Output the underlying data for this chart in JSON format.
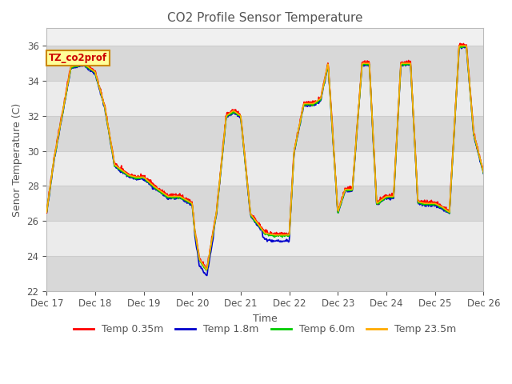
{
  "title": "CO2 Profile Sensor Temperature",
  "ylabel": "Senor Temperature (C)",
  "xlabel": "Time",
  "annotation_text": "TZ_co2prof",
  "annotation_color": "#cc0000",
  "annotation_bg": "#ffff99",
  "annotation_border": "#cc8800",
  "ylim": [
    22,
    37
  ],
  "yticks": [
    22,
    24,
    26,
    28,
    30,
    32,
    34,
    36
  ],
  "legend_labels": [
    "Temp 0.35m",
    "Temp 1.8m",
    "Temp 6.0m",
    "Temp 23.5m"
  ],
  "legend_colors": [
    "#ff0000",
    "#0000cc",
    "#00cc00",
    "#ffaa00"
  ],
  "line_colors": [
    "#ff0000",
    "#0000cc",
    "#00cc00",
    "#ffaa00"
  ],
  "bg_color": "#ffffff",
  "plot_bg_light": "#f0f0f0",
  "plot_bg_dark": "#e0e0e0",
  "grid_color": "#cccccc",
  "x_start": 17,
  "x_end": 26,
  "xtick_positions": [
    17,
    18,
    19,
    20,
    21,
    22,
    23,
    24,
    25,
    26
  ],
  "xtick_labels": [
    "Dec 17",
    "Dec 18",
    "Dec 19",
    "Dec 20",
    "Dec 21",
    "Dec 22",
    "Dec 23",
    "Dec 24",
    "Dec 25",
    "Dec 26"
  ],
  "control_t": [
    17.0,
    17.15,
    17.5,
    17.75,
    18.0,
    18.2,
    18.4,
    18.55,
    18.7,
    18.85,
    19.0,
    19.2,
    19.5,
    19.75,
    20.0,
    20.05,
    20.15,
    20.3,
    20.5,
    20.7,
    20.85,
    21.0,
    21.2,
    21.5,
    21.7,
    22.0,
    22.1,
    22.3,
    22.5,
    22.65,
    22.8,
    23.0,
    23.15,
    23.3,
    23.5,
    23.65,
    23.8,
    24.0,
    24.15,
    24.3,
    24.5,
    24.65,
    24.8,
    25.0,
    25.15,
    25.3,
    25.5,
    25.65,
    25.8,
    26.0
  ],
  "control_v": [
    26.5,
    29.5,
    34.8,
    35.0,
    34.5,
    32.5,
    29.2,
    28.9,
    28.6,
    28.5,
    28.5,
    28.0,
    27.4,
    27.4,
    27.0,
    25.5,
    23.8,
    23.2,
    26.5,
    32.0,
    32.3,
    32.0,
    26.4,
    25.3,
    25.2,
    25.2,
    30.0,
    32.7,
    32.7,
    33.0,
    35.0,
    26.5,
    27.8,
    27.8,
    35.0,
    35.0,
    27.0,
    27.4,
    27.4,
    35.0,
    35.0,
    27.1,
    27.0,
    27.0,
    26.8,
    26.5,
    36.0,
    36.0,
    31.0,
    28.8
  ]
}
